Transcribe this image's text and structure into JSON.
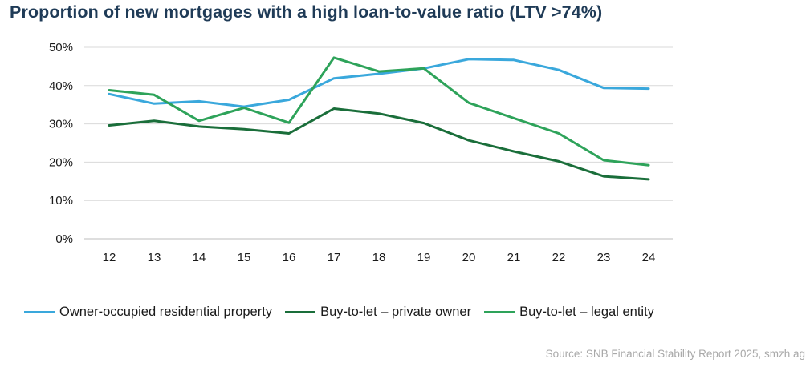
{
  "chart_data": {
    "type": "line",
    "title": "Proportion of new mortgages with a high loan-to-value ratio (LTV >74%)",
    "xlabel": "",
    "ylabel": "",
    "categories": [
      "12",
      "13",
      "14",
      "15",
      "16",
      "17",
      "18",
      "19",
      "20",
      "21",
      "22",
      "23",
      "24"
    ],
    "ylim": [
      0,
      50
    ],
    "yticks": [
      0,
      10,
      20,
      30,
      40,
      50
    ],
    "ytick_labels": [
      "0%",
      "10%",
      "20%",
      "30%",
      "40%",
      "50%"
    ],
    "grid": true,
    "legend_position": "bottom",
    "series": [
      {
        "name": "Owner-occupied residential property",
        "color": "#3aa8dc",
        "values": [
          37.8,
          35.3,
          35.9,
          34.5,
          36.3,
          41.9,
          43.1,
          44.5,
          46.9,
          46.7,
          44.1,
          39.4,
          39.2
        ]
      },
      {
        "name": "Buy-to-let – private owner",
        "color": "#1a6e3a",
        "values": [
          29.6,
          30.8,
          29.3,
          28.6,
          27.5,
          34.0,
          32.7,
          30.2,
          25.7,
          22.8,
          20.2,
          16.3,
          15.5
        ]
      },
      {
        "name": "Buy-to-let – legal entity",
        "color": "#2ea35a",
        "values": [
          38.8,
          37.6,
          30.8,
          34.2,
          30.3,
          47.3,
          43.7,
          44.5,
          35.5,
          31.5,
          27.5,
          20.5,
          19.2
        ]
      }
    ],
    "source": "Source: SNB Financial Stability Report 2025, smzh ag"
  }
}
